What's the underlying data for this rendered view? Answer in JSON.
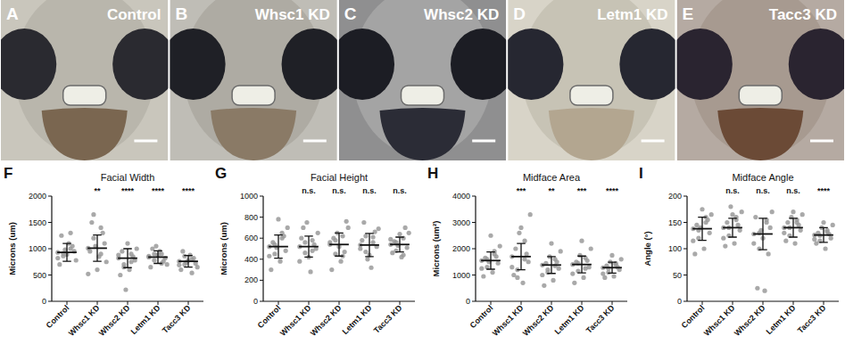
{
  "panels": [
    {
      "letter": "A",
      "label": "Control"
    },
    {
      "letter": "B",
      "label": "Whsc1 KD"
    },
    {
      "letter": "C",
      "label": "Whsc2 KD"
    },
    {
      "letter": "D",
      "label": "Letm1 KD"
    },
    {
      "letter": "E",
      "label": "Tacc3 KD"
    }
  ],
  "chart_data": [
    {
      "type": "scatter",
      "panel": "F",
      "title": "Facial Width",
      "y_label": "Microns (um)",
      "categories": [
        "Control",
        "Whsc1 KD",
        "Whsc2 KD",
        "Letm1 KD",
        "Tacc3 KD"
      ],
      "ylim": [
        0,
        2000
      ],
      "yticks": [
        0,
        500,
        1000,
        1500,
        2000
      ],
      "color": "#9a9a9a",
      "points": [
        [
          930,
          1000,
          860,
          780,
          1100,
          1250,
          950,
          890,
          700,
          1050,
          980,
          820,
          1300,
          910
        ],
        [
          1010,
          1400,
          1200,
          750,
          850,
          1500,
          1100,
          600,
          950,
          1300,
          1050,
          520,
          900,
          1650
        ],
        [
          820,
          900,
          700,
          1000,
          600,
          950,
          780,
          1100,
          500,
          850,
          220,
          880,
          750,
          650
        ],
        [
          840,
          900,
          780,
          700,
          950,
          1000,
          820,
          880,
          650,
          760,
          1050,
          860,
          720,
          900
        ],
        [
          760,
          800,
          700,
          650,
          880,
          950,
          720,
          780,
          600,
          820,
          740,
          690,
          540,
          860
        ]
      ],
      "means": [
        930,
        1010,
        820,
        840,
        760
      ],
      "sd": [
        170,
        250,
        180,
        120,
        110
      ],
      "significance": [
        null,
        "**",
        "****",
        "****",
        "****"
      ]
    },
    {
      "type": "scatter",
      "panel": "G",
      "title": "Facial Height",
      "y_label": "Microns (um)",
      "categories": [
        "Control",
        "Whsc1 KD",
        "Whsc2 KD",
        "Letm1 KD",
        "Tacc3 KD"
      ],
      "ylim": [
        0,
        1000
      ],
      "yticks": [
        0,
        200,
        400,
        600,
        800,
        1000
      ],
      "color": "#9a9a9a",
      "points": [
        [
          520,
          600,
          450,
          700,
          380,
          560,
          480,
          780,
          300,
          620,
          510,
          430,
          650,
          540
        ],
        [
          520,
          580,
          460,
          650,
          280,
          700,
          500,
          420,
          600,
          540,
          750,
          380,
          480,
          560
        ],
        [
          540,
          620,
          450,
          700,
          380,
          600,
          760,
          520,
          300,
          470,
          650,
          560,
          430,
          580
        ],
        [
          535,
          610,
          470,
          690,
          320,
          750,
          520,
          440,
          580,
          660,
          400,
          500,
          560,
          620
        ],
        [
          540,
          600,
          480,
          650,
          420,
          570,
          510,
          640,
          460,
          700,
          530,
          590,
          440,
          560
        ]
      ],
      "means": [
        520,
        520,
        540,
        535,
        540
      ],
      "sd": [
        110,
        100,
        110,
        110,
        70
      ],
      "significance": [
        null,
        "n.s.",
        "n.s.",
        "n.s.",
        "n.s."
      ]
    },
    {
      "type": "scatter",
      "panel": "H",
      "title": "Midface Area",
      "y_label": "Microns (um²)",
      "categories": [
        "Control",
        "Whsc1 KD",
        "Whsc2 KD",
        "Letm1 KD",
        "Tacc3 KD"
      ],
      "ylim": [
        0,
        4000
      ],
      "yticks": [
        0,
        1000,
        2000,
        3000,
        4000
      ],
      "color": "#9a9a9a",
      "points": [
        [
          1550,
          1800,
          1300,
          2100,
          1100,
          1650,
          1450,
          2500,
          950,
          1700,
          1500,
          1250,
          1900,
          1600
        ],
        [
          1700,
          2300,
          1200,
          3300,
          700,
          2000,
          1500,
          2800,
          1000,
          1800,
          2600,
          1300,
          1600,
          900
        ],
        [
          1380,
          1600,
          1100,
          1900,
          800,
          1450,
          1250,
          2200,
          600,
          1500,
          1700,
          1000,
          1350,
          1200
        ],
        [
          1400,
          1650,
          1150,
          2000,
          900,
          1500,
          1300,
          2300,
          700,
          1550,
          1750,
          1050,
          1250,
          1450
        ],
        [
          1280,
          1450,
          1100,
          1600,
          950,
          1350,
          1200,
          1750,
          900,
          1300,
          1500,
          1050,
          1400,
          1250
        ]
      ],
      "means": [
        1550,
        1700,
        1380,
        1400,
        1280
      ],
      "sd": [
        330,
        500,
        320,
        320,
        210
      ],
      "significance": [
        null,
        "***",
        "**",
        "***",
        "****"
      ]
    },
    {
      "type": "scatter",
      "panel": "I",
      "title": "Midface Angle",
      "y_label": "Angle (°)",
      "categories": [
        "Control",
        "Whsc1 KD",
        "Whsc2 KD",
        "Letm1 KD",
        "Tacc3 KD"
      ],
      "ylim": [
        0,
        200
      ],
      "yticks": [
        0,
        50,
        100,
        150,
        200
      ],
      "color": "#9a9a9a",
      "points": [
        [
          138,
          150,
          120,
          165,
          100,
          145,
          130,
          175,
          90,
          155,
          140,
          115,
          160,
          135
        ],
        [
          140,
          155,
          125,
          170,
          110,
          150,
          135,
          165,
          105,
          145,
          180,
          120,
          160,
          140
        ],
        [
          128,
          150,
          100,
          170,
          20,
          25,
          140,
          120,
          160,
          90,
          135,
          110,
          155,
          130
        ],
        [
          140,
          155,
          125,
          165,
          110,
          150,
          135,
          170,
          115,
          145,
          160,
          130,
          150,
          140
        ],
        [
          126,
          135,
          115,
          145,
          100,
          130,
          120,
          150,
          110,
          128,
          140,
          118,
          132,
          125
        ]
      ],
      "means": [
        138,
        140,
        128,
        140,
        126
      ],
      "sd": [
        22,
        18,
        30,
        18,
        14
      ],
      "significance": [
        null,
        "n.s.",
        "n.s.",
        "n.s.",
        "****"
      ]
    }
  ]
}
